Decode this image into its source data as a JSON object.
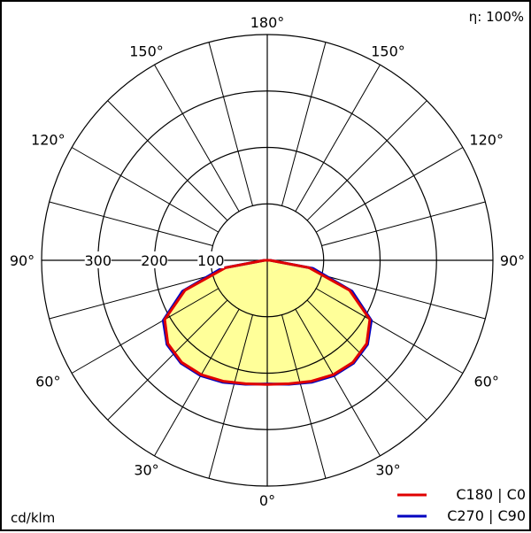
{
  "chart_data": {
    "type": "polar",
    "efficiency_label": "η: 100%",
    "unit_label": "cd/klm",
    "radial_max": 400,
    "radial_ticks": [
      100,
      200,
      300
    ],
    "radial_tick_labels": [
      "100",
      "200",
      "300"
    ],
    "grid_rings": [
      100,
      200,
      300,
      400
    ],
    "spoke_step_deg": 15,
    "angle_labels": [
      {
        "text": "180°",
        "angle": 180,
        "side": "center"
      },
      {
        "text": "150°",
        "angle": 150,
        "side": "left"
      },
      {
        "text": "150°",
        "angle": 150,
        "side": "right"
      },
      {
        "text": "120°",
        "angle": 120,
        "side": "left"
      },
      {
        "text": "120°",
        "angle": 120,
        "side": "right"
      },
      {
        "text": "90°",
        "angle": 90,
        "side": "left"
      },
      {
        "text": "90°",
        "angle": 90,
        "side": "right"
      },
      {
        "text": "60°",
        "angle": 60,
        "side": "left"
      },
      {
        "text": "60°",
        "angle": 60,
        "side": "right"
      },
      {
        "text": "30°",
        "angle": 30,
        "side": "left"
      },
      {
        "text": "30°",
        "angle": 30,
        "side": "right"
      },
      {
        "text": "0°",
        "angle": 0,
        "side": "center"
      }
    ],
    "series": [
      {
        "name": "C180 | C0",
        "color": "#e00000",
        "angles": [
          0,
          10,
          20,
          30,
          40,
          50,
          60,
          70,
          80,
          90
        ],
        "values": [
          220,
          222,
          228,
          234,
          236,
          230,
          210,
          155,
          75,
          5
        ]
      },
      {
        "name": "C270 | C90",
        "color": "#0000c0",
        "angles": [
          0,
          10,
          20,
          30,
          40,
          50,
          60,
          70,
          80,
          90
        ],
        "values": [
          219,
          223,
          230,
          236,
          238,
          232,
          213,
          160,
          82,
          5
        ]
      }
    ],
    "fill_color": "#ffff99"
  }
}
